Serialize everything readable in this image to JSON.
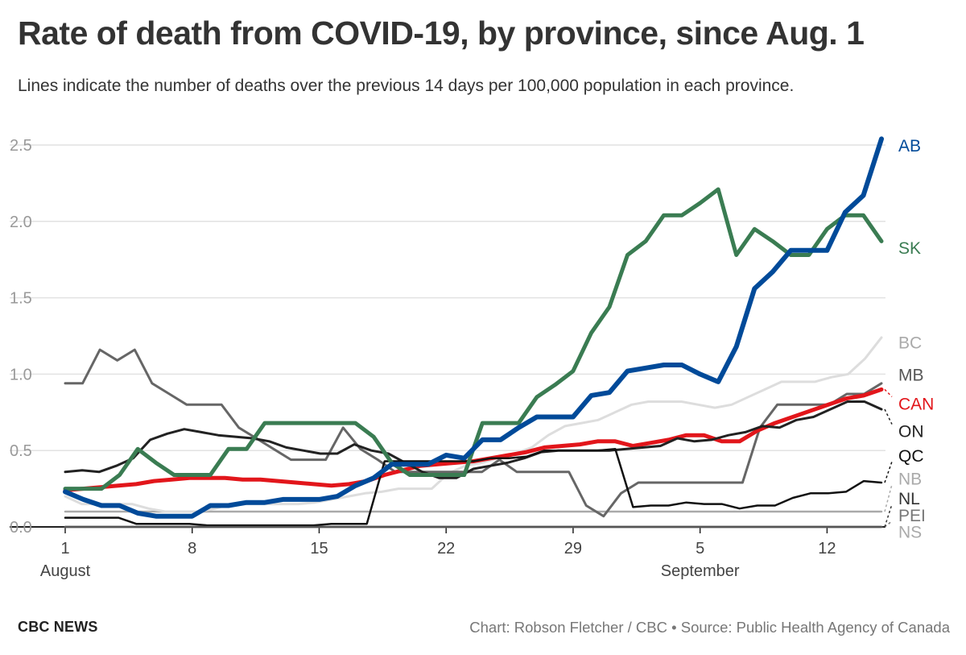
{
  "header": {
    "title": "Rate of death from COVID-19, by province, since Aug. 1",
    "subtitle": "Lines indicate the number of deaths over the previous 14 days per 100,000 population in each province."
  },
  "footer": {
    "brand": "CBC NEWS",
    "credit": "Chart: Robson Fletcher / CBC",
    "separator": "•",
    "source": "Source: Public Health Agency of Canada"
  },
  "chart_data": {
    "type": "line",
    "title": "Rate of death from COVID-19, by province, since Aug. 1",
    "xlabel": "",
    "ylabel": "",
    "x_domain": [
      "2020-08-01",
      "2020-09-15"
    ],
    "x_ticks": [
      {
        "date": "2020-08-01",
        "label": "1",
        "month": "August"
      },
      {
        "date": "2020-08-08",
        "label": "8"
      },
      {
        "date": "2020-08-15",
        "label": "15"
      },
      {
        "date": "2020-08-22",
        "label": "22"
      },
      {
        "date": "2020-08-29",
        "label": "29"
      },
      {
        "date": "2020-09-05",
        "label": "5",
        "month": "September"
      },
      {
        "date": "2020-09-12",
        "label": "12"
      }
    ],
    "ylim": [
      0,
      2.5
    ],
    "y_ticks": [
      0,
      0.5,
      1,
      1.5,
      2,
      2.5
    ],
    "y_tick_labels": [
      "0.0",
      "0.5",
      "1.0",
      "1.5",
      "2.0",
      "2.5"
    ],
    "grid": true,
    "legend": "direct labels at right end of lines",
    "series": [
      {
        "name": "NS",
        "color": "#111111",
        "width": 2.5,
        "label_color": "#aaaaaa",
        "label_y": -0.03,
        "values": [
          0.0
        ]
      },
      {
        "name": "PEI",
        "color": "#bbbbbb",
        "width": 2.5,
        "label_color": "#777777",
        "label_y": 0.08,
        "values": [
          0.0
        ]
      },
      {
        "name": "NB",
        "color": "#aaaaaa",
        "width": 2.5,
        "label_color": "#aaaaaa",
        "label_y": 0.32,
        "values": [
          0.1,
          0.1,
          0.1,
          0.1,
          0.1,
          0.1,
          0.1,
          0.1,
          0.1,
          0.1,
          0.1,
          0.1,
          0.1,
          0.1,
          0.1,
          0.1,
          0.1,
          0.1,
          0.1,
          0.1,
          0.1,
          0.1,
          0.1,
          0.1,
          0.1,
          0.1,
          0.1,
          0.1,
          0.1,
          0.1,
          0.1,
          0.1,
          0.1,
          0.1,
          0.1,
          0.1,
          0.1,
          0.1,
          0.1,
          0.1,
          0.1,
          0.1,
          0.1,
          0.1,
          0.1,
          0.1
        ]
      },
      {
        "name": "BC",
        "color": "#dddddd",
        "width": 3,
        "label_color": "#aaaaaa",
        "label_y": 1.21,
        "values": [
          0.2,
          0.15,
          0.15,
          0.15,
          0.15,
          0.12,
          0.1,
          0.1,
          0.1,
          0.12,
          0.15,
          0.15,
          0.15,
          0.15,
          0.15,
          0.16,
          0.18,
          0.2,
          0.22,
          0.23,
          0.25,
          0.25,
          0.25,
          0.35,
          0.4,
          0.42,
          0.45,
          0.48,
          0.52,
          0.6,
          0.66,
          0.68,
          0.7,
          0.75,
          0.8,
          0.82,
          0.82,
          0.82,
          0.8,
          0.78,
          0.8,
          0.85,
          0.9,
          0.95,
          0.95,
          0.95,
          0.98,
          1.0,
          1.1,
          1.24
        ]
      },
      {
        "name": "MB",
        "color": "#666666",
        "width": 3,
        "label_color": "#555555",
        "label_y": 1.0,
        "values": [
          0.94,
          0.94,
          1.16,
          1.09,
          1.16,
          0.94,
          0.87,
          0.8,
          0.8,
          0.8,
          0.65,
          0.58,
          0.51,
          0.44,
          0.44,
          0.44,
          0.65,
          0.51,
          0.44,
          0.36,
          0.36,
          0.36,
          0.36,
          0.36,
          0.36,
          0.44,
          0.36,
          0.36,
          0.36,
          0.36,
          0.14,
          0.07,
          0.22,
          0.29,
          0.29,
          0.29,
          0.29,
          0.29,
          0.29,
          0.29,
          0.65,
          0.8,
          0.8,
          0.8,
          0.8,
          0.87,
          0.87,
          0.94
        ]
      },
      {
        "name": "CAN",
        "color": "#e2161b",
        "width": 5,
        "label_color": "#e2161b",
        "label_y": 0.81,
        "values": [
          0.24,
          0.25,
          0.26,
          0.27,
          0.28,
          0.3,
          0.31,
          0.32,
          0.32,
          0.32,
          0.31,
          0.31,
          0.3,
          0.29,
          0.28,
          0.27,
          0.28,
          0.3,
          0.34,
          0.37,
          0.4,
          0.41,
          0.42,
          0.43,
          0.45,
          0.47,
          0.49,
          0.52,
          0.53,
          0.54,
          0.56,
          0.56,
          0.53,
          0.55,
          0.57,
          0.6,
          0.6,
          0.56,
          0.56,
          0.63,
          0.68,
          0.72,
          0.76,
          0.8,
          0.84,
          0.86,
          0.9
        ]
      },
      {
        "name": "ON",
        "color": "#222222",
        "width": 3,
        "label_color": "#222222",
        "label_y": 0.63,
        "values": [
          0.36,
          0.37,
          0.36,
          0.4,
          0.45,
          0.57,
          0.61,
          0.64,
          0.62,
          0.6,
          0.59,
          0.58,
          0.56,
          0.52,
          0.5,
          0.48,
          0.48,
          0.54,
          0.5,
          0.48,
          0.42,
          0.36,
          0.32,
          0.32,
          0.38,
          0.4,
          0.42,
          0.45,
          0.49,
          0.5,
          0.5,
          0.5,
          0.5,
          0.51,
          0.52,
          0.53,
          0.58,
          0.56,
          0.57,
          0.6,
          0.62,
          0.66,
          0.65,
          0.7,
          0.72,
          0.77,
          0.82,
          0.82,
          0.77
        ]
      },
      {
        "name": "QC",
        "color": "#111111",
        "width": 2.5,
        "label_color": "#111111",
        "label_y": 0.47,
        "values": [
          0.06,
          0.06,
          0.06,
          0.06,
          0.02,
          0.02,
          0.02,
          0.02,
          0.01,
          0.01,
          0.01,
          0.01,
          0.01,
          0.01,
          0.01,
          0.02,
          0.02,
          0.02,
          0.43,
          0.43,
          0.43,
          0.43,
          0.43,
          0.43,
          0.45,
          0.45,
          0.46,
          0.5,
          0.5,
          0.5,
          0.5,
          0.51,
          0.13,
          0.14,
          0.14,
          0.16,
          0.15,
          0.15,
          0.12,
          0.14,
          0.14,
          0.19,
          0.22,
          0.22,
          0.23,
          0.3,
          0.29
        ]
      },
      {
        "name": "NL",
        "color": "#555555",
        "width": 2.5,
        "label_color": "#333333",
        "label_y": 0.19,
        "values": [
          0.0
        ]
      },
      {
        "name": "SK",
        "color": "#3a7c52",
        "width": 5,
        "label_color": "#3a7c52",
        "label_y": 1.83,
        "values": [
          0.25,
          0.25,
          0.25,
          0.34,
          0.51,
          0.42,
          0.34,
          0.34,
          0.34,
          0.51,
          0.51,
          0.68,
          0.68,
          0.68,
          0.68,
          0.68,
          0.68,
          0.59,
          0.42,
          0.34,
          0.34,
          0.34,
          0.34,
          0.68,
          0.68,
          0.68,
          0.85,
          0.93,
          1.02,
          1.27,
          1.44,
          1.78,
          1.87,
          2.04,
          2.04,
          2.12,
          2.21,
          1.78,
          1.95,
          1.87,
          1.78,
          1.78,
          1.95,
          2.04,
          2.04,
          1.87
        ]
      },
      {
        "name": "AB",
        "color": "#004a99",
        "width": 6,
        "label_color": "#004a99",
        "label_y": 2.5,
        "values": [
          0.23,
          0.18,
          0.14,
          0.14,
          0.09,
          0.07,
          0.07,
          0.07,
          0.14,
          0.14,
          0.16,
          0.16,
          0.18,
          0.18,
          0.18,
          0.2,
          0.27,
          0.32,
          0.41,
          0.41,
          0.41,
          0.47,
          0.45,
          0.57,
          0.57,
          0.65,
          0.72,
          0.72,
          0.72,
          0.86,
          0.88,
          1.02,
          1.04,
          1.06,
          1.06,
          1.0,
          0.95,
          1.18,
          1.56,
          1.67,
          1.81,
          1.81,
          1.81,
          2.06,
          2.17,
          2.54
        ]
      }
    ]
  }
}
